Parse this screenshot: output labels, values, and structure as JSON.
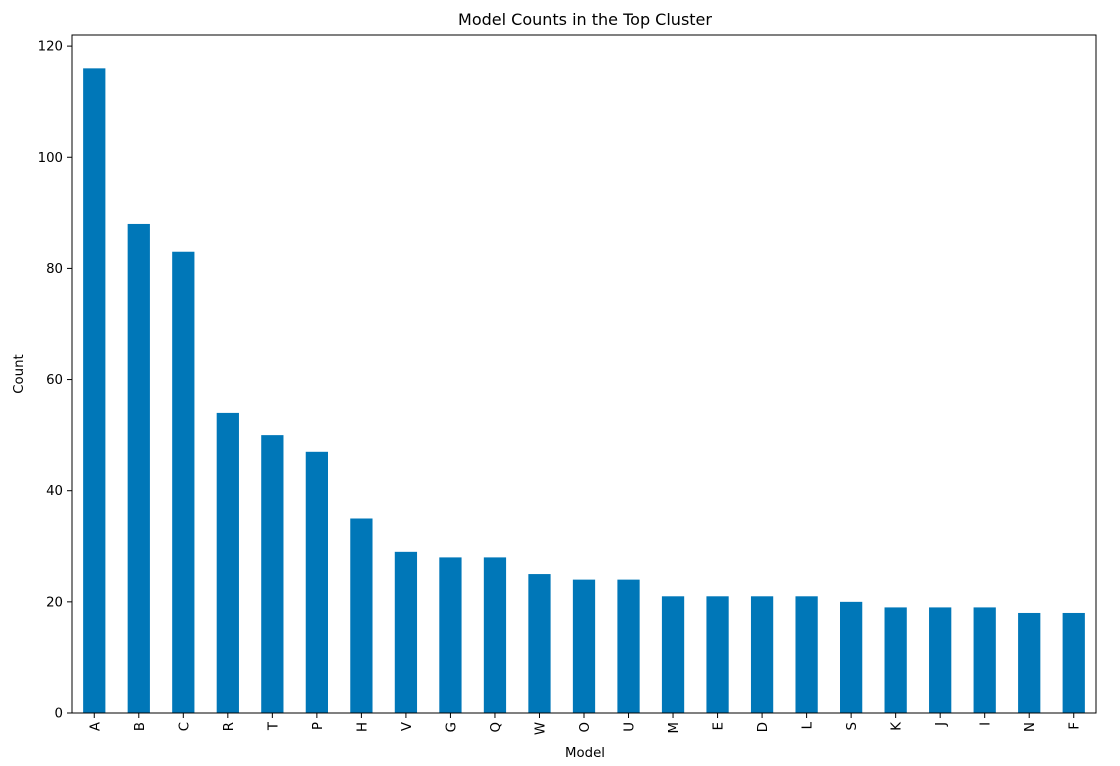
{
  "chart_data": {
    "type": "bar",
    "title": "Model Counts in the Top Cluster",
    "xlabel": "Model",
    "ylabel": "Count",
    "categories": [
      "A",
      "B",
      "C",
      "R",
      "T",
      "P",
      "H",
      "V",
      "G",
      "Q",
      "W",
      "O",
      "U",
      "M",
      "E",
      "D",
      "L",
      "S",
      "K",
      "J",
      "I",
      "N",
      "F"
    ],
    "values": [
      116,
      88,
      83,
      54,
      50,
      47,
      35,
      29,
      28,
      28,
      25,
      24,
      24,
      21,
      21,
      21,
      21,
      20,
      19,
      19,
      19,
      18,
      18
    ],
    "ylim": [
      0,
      122
    ],
    "yticks": [
      0,
      20,
      40,
      60,
      80,
      100,
      120
    ],
    "bar_color": "#0077b8",
    "grid": false,
    "legend": "none",
    "xtick_rotation": "vertical"
  }
}
